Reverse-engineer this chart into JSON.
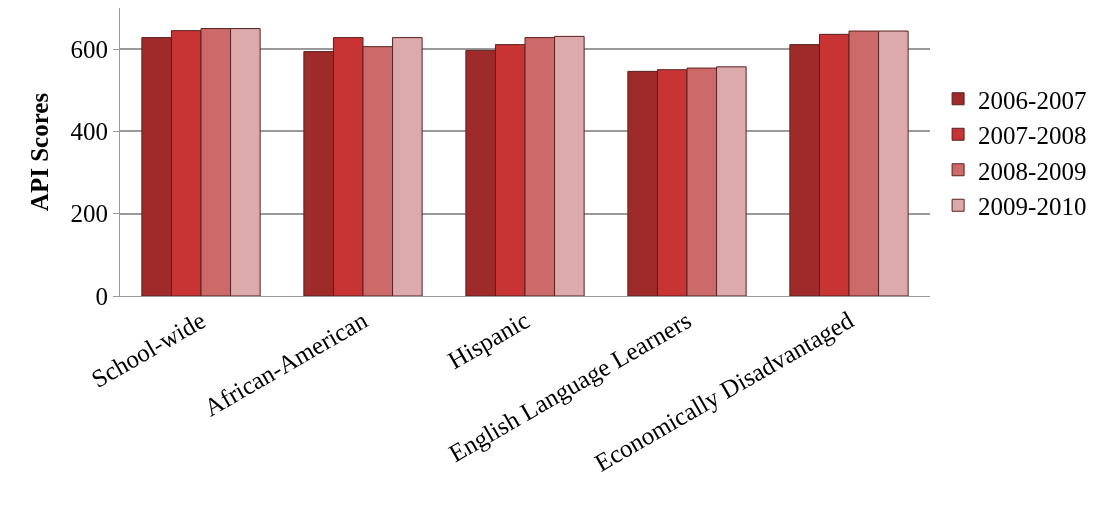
{
  "chart_data": {
    "type": "bar",
    "ylabel": "API Scores",
    "categories": [
      "School-wide",
      "African-American",
      "Hispanic",
      "English Language Learners",
      "Economically Disadvantaged"
    ],
    "series": [
      {
        "name": "2006-2007",
        "color": "#9e2a2a",
        "values": [
          628,
          594,
          597,
          546,
          611
        ]
      },
      {
        "name": "2007-2008",
        "color": "#c83434",
        "values": [
          645,
          628,
          611,
          550,
          636
        ]
      },
      {
        "name": "2008-2009",
        "color": "#cc6a6a",
        "values": [
          650,
          606,
          628,
          554,
          644
        ]
      },
      {
        "name": "2009-2010",
        "color": "#dcaaaa",
        "values": [
          650,
          628,
          631,
          557,
          644
        ]
      }
    ],
    "ylim": [
      0,
      700
    ],
    "yticks": [
      0,
      200,
      400,
      600
    ],
    "grid": "y",
    "legend": "right"
  }
}
